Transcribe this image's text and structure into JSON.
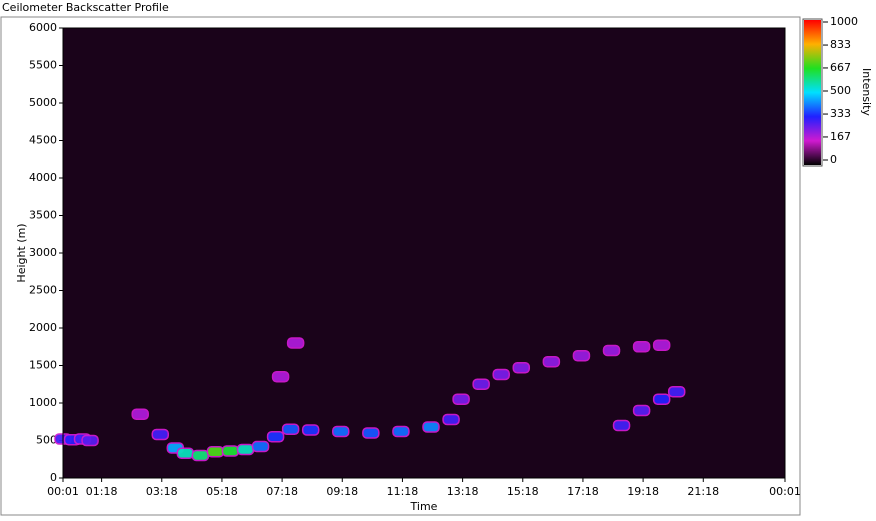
{
  "chart_data": {
    "type": "heatmap",
    "title": "Ceilometer Backscatter Profile",
    "x_label": "Time",
    "y_label": "Height (m)",
    "colorbar_label": "Intensity",
    "xlim": [
      1,
      1441
    ],
    "xticks": [
      {
        "value": 1,
        "label": "00:01"
      },
      {
        "value": 78,
        "label": "01:18"
      },
      {
        "value": 198,
        "label": "03:18"
      },
      {
        "value": 318,
        "label": "05:18"
      },
      {
        "value": 438,
        "label": "07:18"
      },
      {
        "value": 558,
        "label": "09:18"
      },
      {
        "value": 678,
        "label": "11:18"
      },
      {
        "value": 798,
        "label": "13:18"
      },
      {
        "value": 918,
        "label": "15:18"
      },
      {
        "value": 1038,
        "label": "17:18"
      },
      {
        "value": 1158,
        "label": "19:18"
      },
      {
        "value": 1278,
        "label": "21:18"
      },
      {
        "value": 1441,
        "label": "00:01"
      }
    ],
    "ylim": [
      0,
      6000
    ],
    "yticks": [
      0,
      500,
      1000,
      1500,
      2000,
      2500,
      3000,
      3500,
      4000,
      4500,
      5000,
      5500,
      6000
    ],
    "clim": [
      0,
      1000
    ],
    "cticks": [
      0,
      167,
      333,
      500,
      667,
      833,
      1000
    ],
    "colormap": [
      "#000000",
      "#d01ad0",
      "#2020ff",
      "#00e0ff",
      "#20e020",
      "#ffb000",
      "#ff0000"
    ],
    "layer": {
      "x": [
        1,
        20,
        40,
        55,
        155,
        195,
        225,
        245,
        275,
        305,
        335,
        365,
        395,
        425,
        435,
        455,
        465,
        495,
        555,
        615,
        675,
        735,
        775,
        795,
        835,
        875,
        915,
        975,
        1035,
        1095,
        1155,
        1195,
        1115,
        1155,
        1195,
        1225
      ],
      "y": [
        520,
        510,
        520,
        500,
        850,
        580,
        400,
        330,
        300,
        350,
        360,
        380,
        420,
        550,
        1350,
        650,
        1800,
        640,
        620,
        600,
        620,
        680,
        780,
        1050,
        1250,
        1380,
        1470,
        1550,
        1630,
        1700,
        1750,
        1770,
        700,
        900,
        1050,
        1150
      ],
      "intensity": [
        300,
        320,
        300,
        280,
        200,
        300,
        450,
        550,
        600,
        700,
        650,
        550,
        400,
        350,
        200,
        380,
        200,
        350,
        400,
        380,
        400,
        420,
        300,
        250,
        260,
        250,
        240,
        230,
        220,
        220,
        200,
        200,
        300,
        280,
        330,
        300
      ]
    }
  }
}
